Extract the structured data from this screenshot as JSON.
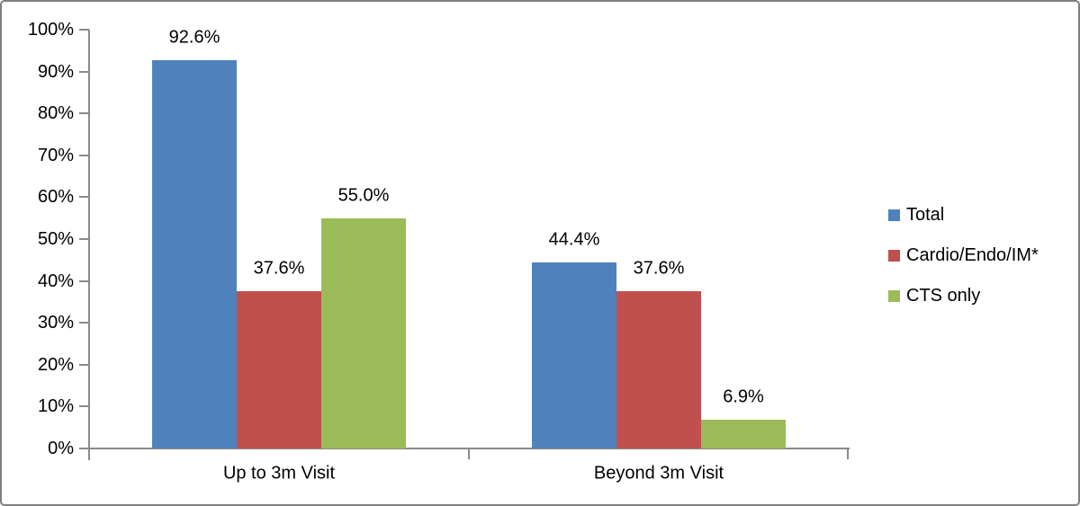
{
  "chart_data": {
    "type": "bar",
    "title": "",
    "xlabel": "",
    "ylabel": "",
    "categories": [
      "Up to 3m Visit",
      "Beyond 3m Visit"
    ],
    "series": [
      {
        "name": "Total",
        "color": "#4F81BD",
        "values": [
          92.6,
          44.4
        ]
      },
      {
        "name": "Cardio/Endo/IM*",
        "color": "#C0504D",
        "values": [
          37.6,
          37.6
        ]
      },
      {
        "name": "CTS only",
        "color": "#9BBB59",
        "values": [
          55.0,
          6.9
        ]
      }
    ],
    "ylim": [
      0,
      100
    ],
    "ytick_step": 10,
    "ytick_suffix": "%",
    "data_label_format": "one_decimal_percent",
    "grid": false,
    "legend_position": "right",
    "axis_color": "#8A8A8A",
    "text_color": "#000000",
    "background_color": "#FFFFFF",
    "border_color": "#7F7F7F"
  }
}
